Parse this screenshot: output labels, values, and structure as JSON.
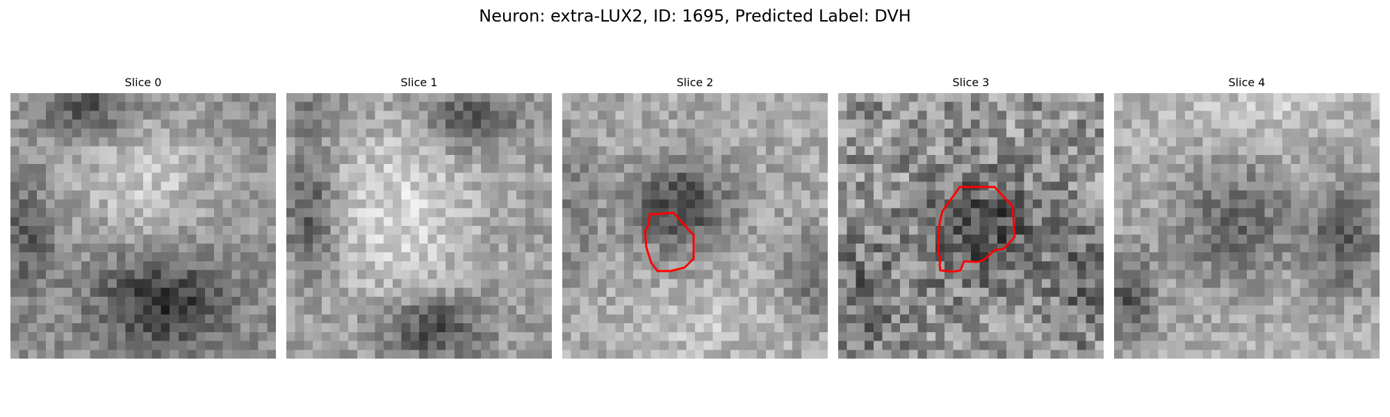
{
  "figure": {
    "title": "Neuron: extra-LUX2, ID: 1695, Predicted Label: DVH"
  },
  "panels": [
    {
      "title": "Slice 0",
      "has_contour": false
    },
    {
      "title": "Slice 1",
      "has_contour": false
    },
    {
      "title": "Slice 2",
      "has_contour": true
    },
    {
      "title": "Slice 3",
      "has_contour": true
    },
    {
      "title": "Slice 4",
      "has_contour": false
    }
  ],
  "colors": {
    "background": "#ffffff",
    "contour": "#ff0000"
  }
}
